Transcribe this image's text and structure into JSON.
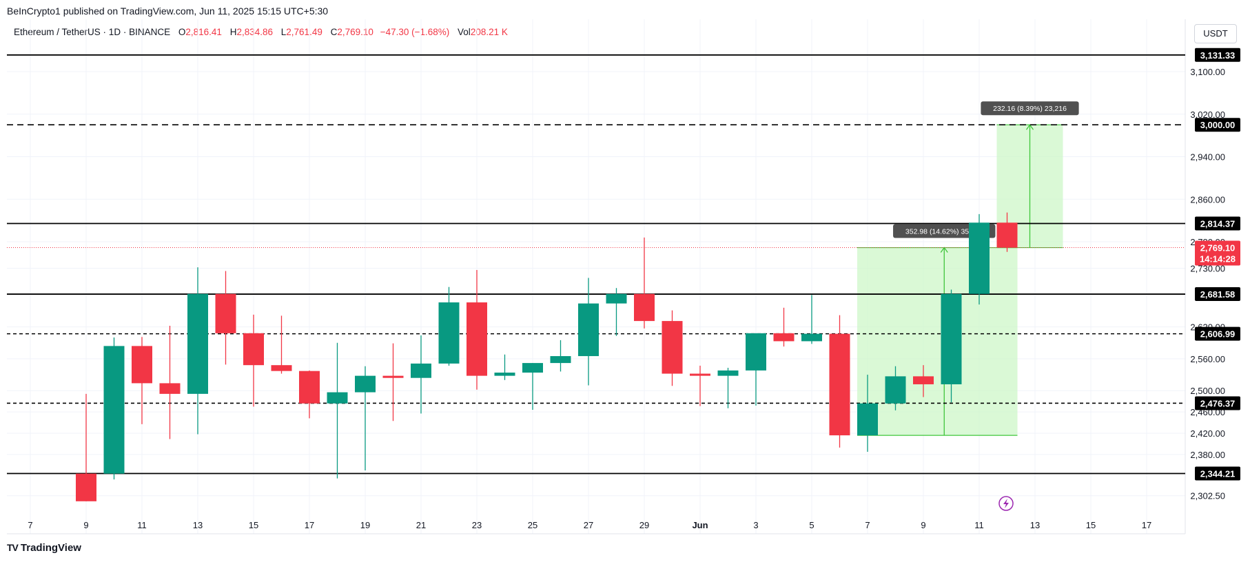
{
  "publisher_line": "BeInCrypto1 published on TradingView.com, Jun 11, 2025 15:15 UTC+5:30",
  "legend": {
    "symbol": "Ethereum / TetherUS · 1D · BINANCE",
    "o_label": "O",
    "o": "2,816.41",
    "h_label": "H",
    "h": "2,834.86",
    "l_label": "L",
    "l": "2,761.49",
    "c_label": "C",
    "c": "2,769.10",
    "change": "−47.30 (−1.68%)",
    "vol_label": "Vol",
    "vol": "208.21 K"
  },
  "currency_button": "USDT",
  "footer_logo": "TradingView",
  "footer_logo_mark": "TV",
  "colors": {
    "up": "#089981",
    "down": "#f23645",
    "measure_fill": "#cdf7c8",
    "measure_line": "#3ec53a",
    "level_line": "#000000",
    "grid": "#f0f3fa"
  },
  "chart_data": {
    "type": "candlestick",
    "x_ticks": [
      "7",
      "9",
      "11",
      "13",
      "15",
      "17",
      "19",
      "21",
      "23",
      "25",
      "27",
      "29",
      "Jun",
      "3",
      "5",
      "7",
      "9",
      "11",
      "13",
      "15",
      "17"
    ],
    "y_ticks": [
      "2,302.50",
      "2,380.00",
      "2,420.00",
      "2,460.00",
      "2,500.00",
      "2,560.00",
      "2,620.00",
      "2,730.00",
      "2,780.00",
      "2,860.00",
      "2,940.00",
      "3,020.00",
      "3,100.00"
    ],
    "ylim": [
      2280,
      3160
    ],
    "candles": [
      {
        "date": "May 9",
        "o": 2344,
        "h": 2494,
        "l": 2292,
        "c": 2292
      },
      {
        "date": "May 10",
        "o": 2344,
        "h": 2600,
        "l": 2333,
        "c": 2584
      },
      {
        "date": "May 11",
        "o": 2584,
        "h": 2601,
        "l": 2437,
        "c": 2514
      },
      {
        "date": "May 12",
        "o": 2514,
        "h": 2622,
        "l": 2409,
        "c": 2494
      },
      {
        "date": "May 13",
        "o": 2494,
        "h": 2732,
        "l": 2418,
        "c": 2682
      },
      {
        "date": "May 14",
        "o": 2682,
        "h": 2725,
        "l": 2549,
        "c": 2608
      },
      {
        "date": "May 15",
        "o": 2608,
        "h": 2643,
        "l": 2470,
        "c": 2548
      },
      {
        "date": "May 16",
        "o": 2548,
        "h": 2641,
        "l": 2532,
        "c": 2537
      },
      {
        "date": "May 17",
        "o": 2537,
        "h": 2538,
        "l": 2448,
        "c": 2476
      },
      {
        "date": "May 18",
        "o": 2476,
        "h": 2590,
        "l": 2335,
        "c": 2497
      },
      {
        "date": "May 19",
        "o": 2497,
        "h": 2546,
        "l": 2350,
        "c": 2528
      },
      {
        "date": "May 20",
        "o": 2528,
        "h": 2589,
        "l": 2443,
        "c": 2524
      },
      {
        "date": "May 21",
        "o": 2524,
        "h": 2604,
        "l": 2457,
        "c": 2551
      },
      {
        "date": "May 22",
        "o": 2551,
        "h": 2695,
        "l": 2547,
        "c": 2666
      },
      {
        "date": "May 23",
        "o": 2666,
        "h": 2727,
        "l": 2502,
        "c": 2528
      },
      {
        "date": "May 24",
        "o": 2528,
        "h": 2568,
        "l": 2520,
        "c": 2534
      },
      {
        "date": "May 25",
        "o": 2534,
        "h": 2552,
        "l": 2464,
        "c": 2552
      },
      {
        "date": "May 26",
        "o": 2552,
        "h": 2595,
        "l": 2536,
        "c": 2565
      },
      {
        "date": "May 27",
        "o": 2565,
        "h": 2712,
        "l": 2510,
        "c": 2664
      },
      {
        "date": "May 28",
        "o": 2664,
        "h": 2693,
        "l": 2603,
        "c": 2682
      },
      {
        "date": "May 29",
        "o": 2682,
        "h": 2788,
        "l": 2617,
        "c": 2631
      },
      {
        "date": "May 30",
        "o": 2631,
        "h": 2651,
        "l": 2509,
        "c": 2532
      },
      {
        "date": "May 31",
        "o": 2532,
        "h": 2547,
        "l": 2471,
        "c": 2528
      },
      {
        "date": "Jun 1",
        "o": 2528,
        "h": 2543,
        "l": 2467,
        "c": 2538
      },
      {
        "date": "Jun 2",
        "o": 2538,
        "h": 2608,
        "l": 2472,
        "c": 2608
      },
      {
        "date": "Jun 3",
        "o": 2608,
        "h": 2656,
        "l": 2583,
        "c": 2593
      },
      {
        "date": "Jun 4",
        "o": 2593,
        "h": 2680,
        "l": 2588,
        "c": 2607
      },
      {
        "date": "Jun 5",
        "o": 2607,
        "h": 2642,
        "l": 2393,
        "c": 2416
      },
      {
        "date": "Jun 6",
        "o": 2416,
        "h": 2530,
        "l": 2385,
        "c": 2476
      },
      {
        "date": "Jun 7",
        "o": 2476,
        "h": 2546,
        "l": 2463,
        "c": 2527
      },
      {
        "date": "Jun 8",
        "o": 2527,
        "h": 2548,
        "l": 2488,
        "c": 2512
      },
      {
        "date": "Jun 9",
        "o": 2512,
        "h": 2690,
        "l": 2478,
        "c": 2682
      },
      {
        "date": "Jun 10",
        "o": 2682,
        "h": 2832,
        "l": 2662,
        "c": 2816
      },
      {
        "date": "Jun 11",
        "o": 2816,
        "h": 2835,
        "l": 2761,
        "c": 2769
      }
    ],
    "levels": [
      {
        "price": 3131.33,
        "label": "3,131.33",
        "style": "solid"
      },
      {
        "price": 3000.0,
        "label": "3,000.00",
        "style": "dashed"
      },
      {
        "price": 2814.37,
        "label": "2,814.37",
        "style": "solid"
      },
      {
        "price": 2681.58,
        "label": "2,681.58",
        "style": "solid"
      },
      {
        "price": 2606.99,
        "label": "2,606.99",
        "style": "dashed"
      },
      {
        "price": 2476.37,
        "label": "2,476.37",
        "style": "dashed"
      },
      {
        "price": 2344.21,
        "label": "2,344.21",
        "style": "solid"
      }
    ],
    "last_price": {
      "price": 2769.1,
      "label": "2,769.10",
      "countdown": "14:14:28"
    },
    "measurements": [
      {
        "from_date": "Jun 6",
        "to_date": "Jun 11",
        "from_price": 2416,
        "to_price": 2769,
        "label": "352.98 (14.62%) 35,298"
      },
      {
        "from_date": "Jun 11",
        "to_date": "Jun 13",
        "from_price": 2769,
        "to_price": 3000,
        "label": "232.16 (8.39%) 23,216"
      }
    ]
  }
}
